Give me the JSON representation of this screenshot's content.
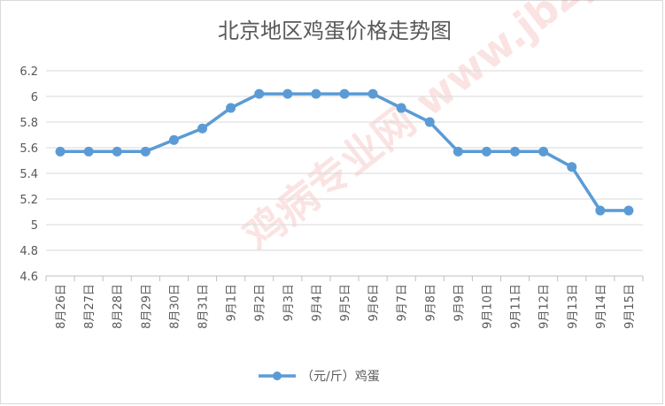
{
  "chart_data": {
    "type": "line",
    "title": "北京地区鸡蛋价格走势图",
    "xlabel": "",
    "ylabel": "",
    "categories": [
      "8月26日",
      "8月27日",
      "8月28日",
      "8月29日",
      "8月30日",
      "8月31日",
      "9月1日",
      "9月2日",
      "9月3日",
      "9月4日",
      "9月5日",
      "9月6日",
      "9月7日",
      "9月8日",
      "9月9日",
      "9月10日",
      "9月11日",
      "9月12日",
      "9月13日",
      "9月14日",
      "9月15日"
    ],
    "series": [
      {
        "name": "（元/斤）鸡蛋",
        "values": [
          5.57,
          5.57,
          5.57,
          5.57,
          5.66,
          5.75,
          5.91,
          6.02,
          6.02,
          6.02,
          6.02,
          6.02,
          5.91,
          5.8,
          5.57,
          5.57,
          5.57,
          5.57,
          5.45,
          5.11,
          5.11
        ]
      }
    ],
    "ylim": [
      4.6,
      6.2
    ],
    "yticks": [
      "4.6",
      "4.8",
      "5",
      "5.2",
      "5.4",
      "5.6",
      "5.8",
      "6",
      "6.2"
    ],
    "grid": true,
    "legend_position": "bottom",
    "colors": {
      "line": "#5b9bd5",
      "grid": "#d9d9d9",
      "text": "#595959"
    }
  },
  "watermark": {
    "text": "鸡病专业网 www.jbzyw.com"
  }
}
